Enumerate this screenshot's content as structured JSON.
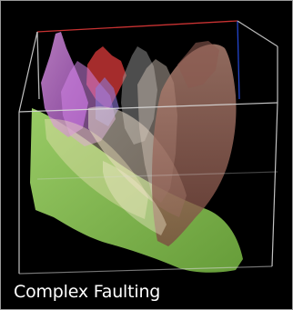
{
  "caption": "Complex Faulting",
  "colors": {
    "background": "#000000",
    "horizon": "#8fcc58",
    "fault_red": "#c23434",
    "fault_magenta": "#d67fe8",
    "fault_brown": "#b06a5a",
    "fault_pale": "#e6d6c6",
    "box_line": "#d8d8d8",
    "box_edge_red": "#c83232",
    "box_edge_blue": "#2244cc"
  }
}
